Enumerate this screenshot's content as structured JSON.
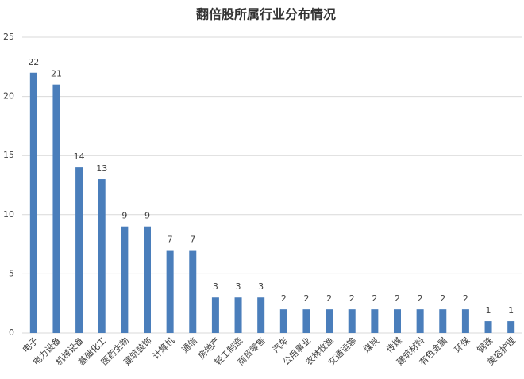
{
  "chart_data": {
    "type": "bar",
    "title": "翻倍股所属行业分布情况",
    "categories": [
      "电子",
      "电力设备",
      "机械设备",
      "基础化工",
      "医药生物",
      "建筑装饰",
      "计算机",
      "通信",
      "房地产",
      "轻工制造",
      "商贸零售",
      "汽车",
      "公用事业",
      "农林牧渔",
      "交通运输",
      "煤炭",
      "传媒",
      "建筑材料",
      "有色金属",
      "环保",
      "钢铁",
      "美容护理"
    ],
    "values": [
      22,
      21,
      14,
      13,
      9,
      9,
      7,
      7,
      3,
      3,
      3,
      2,
      2,
      2,
      2,
      2,
      2,
      2,
      2,
      2,
      1,
      1
    ],
    "color": "#4a7ebb",
    "ylim": [
      0,
      25
    ],
    "yticks": [
      0,
      5,
      10,
      15,
      20,
      25
    ],
    "grid": true
  }
}
